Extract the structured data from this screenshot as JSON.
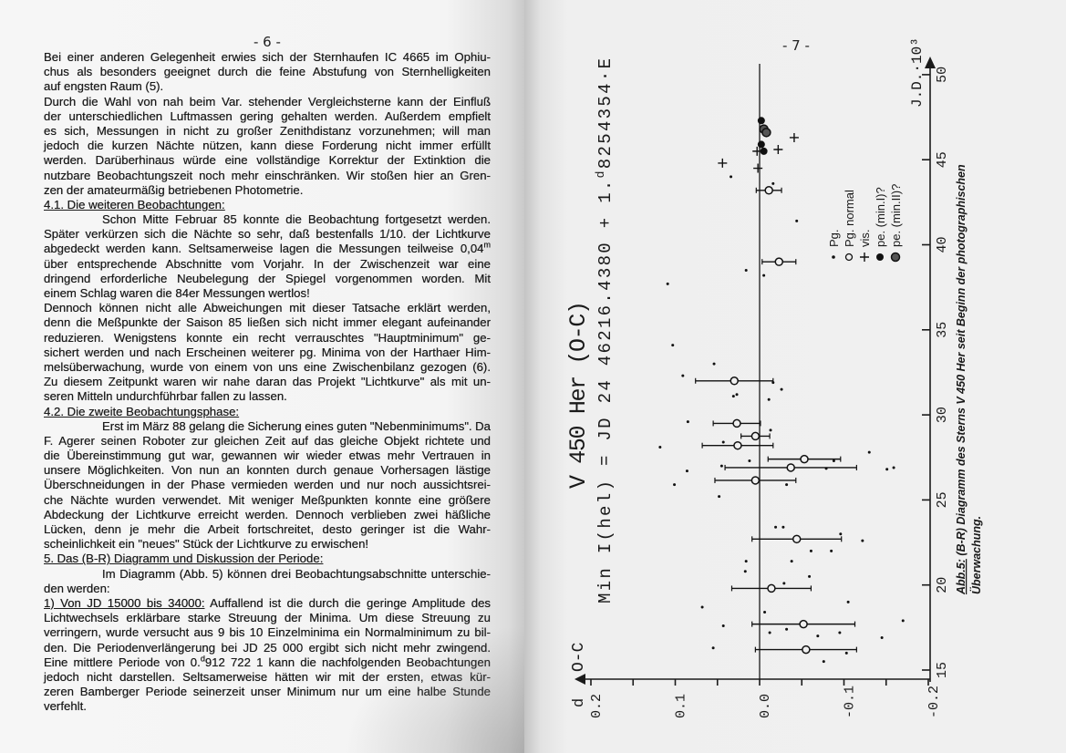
{
  "left": {
    "page_number": "- 6 -",
    "lines": [
      "Bei einer anderen Gelegenheit erwies sich der Sternhaufen IC 4665 im Ophiu-",
      "chus als besonders geeignet durch die feine Abstufung von Sternhelligkeiten",
      "auf engsten Raum (5).",
      "Durch die Wahl von nah beim Var. stehender Vergleichsterne kann der Einfluß",
      "der unterschiedlichen Luftmassen gering gehalten werden. Außerdem empfielt",
      "es sich, Messungen in nicht zu großer Zenithdistanz vorzunehmen; will man",
      "jedoch die kurzen Nächte nützen, kann diese Forderung nicht immer erfüllt",
      "werden. Darüberhinaus würde eine vollständige Korrektur der Extinktion die",
      "nutzbare Beobachtungszeit noch mehr einschränken. Wir stoßen hier an Gren-",
      "zen der amateurmäßig betriebenen Photometrie.",
      {
        "u": "4.1. Die weiteren Beobachtungen:"
      },
      "Schon Mitte Februar 85 konnte die Beobachtung fortgesetzt werden.",
      "Später verkürzen sich die Nächte so sehr, daß bestenfalls 1/10. der Lichtkurve",
      {
        "t": "abgedeckt werden kann. Seltsamerweise lagen die Messungen teilweise 0,04",
        "sup": "m",
        "t2": ""
      },
      "über entsprechende Abschnitte vom Vorjahr. In der Zwischenzeit war eine",
      "dringend erforderliche Neubelegung der Spiegel vorgenommen worden. Mit",
      "einem Schlag waren die 84er Messungen wertlos!",
      "Dennoch können nicht alle Abweichungen mit dieser Tatsache erklärt werden,",
      "denn die Meßpunkte der Saison 85 ließen sich nicht immer elegant aufeinander",
      "reduzieren. Wenigstens konnte ein recht verrauschtes \"Hauptminimum\" ge-",
      "sichert werden und nach Erscheinen weiterer pg. Minima von der Harthaer Him-",
      "melsüberwachung, wurde von einem von uns eine Zwischenbilanz gezogen (6).",
      "Zu diesem Zeitpunkt waren wir nahe daran das Projekt \"Lichtkurve\" als mit un-",
      "seren Mitteln undurchführbar fallen zu lassen.",
      {
        "u": "4.2. Die zweite Beobachtungsphase:"
      },
      "Erst im März 88 gelang die Sicherung eines guten \"Nebenminimums\". Da",
      "F. Agerer seinen Roboter zur gleichen Zeit auf das gleiche Objekt richtete und",
      "die Übereinstimmung gut war, gewannen wir wieder etwas mehr Vertrauen in",
      "unsere Möglichkeiten. Von nun an konnten durch genaue Vorhersagen lästige",
      "Überschneidungen in der Phase vermieden werden und nur noch aussichtsrei-",
      "che Nächte wurden verwendet. Mit weniger Meßpunkten konnte eine größere",
      "Abdeckung der Lichtkurve erreicht werden. Dennoch verblieben zwei häßliche",
      "Lücken, denn je mehr die Arbeit fortschreitet, desto geringer ist die Wahr-",
      "scheinlichkeit ein \"neues\" Stück der Lichtkurve zu erwischen!",
      {
        "u": "5. Das (B-R) Diagramm und Diskussion der Periode:"
      },
      "Im Diagramm (Abb. 5) können drei Beobachtungsabschnitte unterschie-",
      "den werden:",
      {
        "u": "1) Von JD 15000 bis 34000:",
        "t": " Auffallend ist die durch die geringe Amplitude des"
      },
      "Lichtwechsels erklärbare starke Streuung der Minima. Um diese Streuung zu",
      "verringern, wurde versucht aus 9 bis 10 Einzelminima ein Normalminimum zu bil-",
      "den. Die Periodenverlängerung bei JD 25 000 ergibt sich nicht mehr zwingend.",
      {
        "t": "Eine mittlere Periode von 0.",
        "sup": "d",
        "t2": "912 722 1 kann die nachfolgenden Beobachtungen"
      },
      "jedoch nicht darstellen. Seltsamerweise hätten wir mit der ersten, etwas kür-",
      "zeren Bamberger Periode seinerzeit unser Minimum nur um eine halbe Stunde",
      "verfehlt."
    ]
  },
  "right": {
    "page_number": "- 7 -",
    "caption_label": "Abb.5:",
    "caption_line1": " (B-R) Diagramm des Sterns V 450 Her seit Beginn der photographischen",
    "caption_line2": "Überwachung."
  },
  "chart_data": {
    "type": "scatter",
    "orientation": "rotated 90° (JD axis vertical, O-C axis horizontal)",
    "title": "V 450 Her (O-C)",
    "ephemeris": {
      "pre": "Min I(hel) = JD 24 46216.4380 + 1.",
      "sup": "d",
      "post": "8254354·E"
    },
    "xlabel": "J.D.·10³",
    "ylabel_unit": "d",
    "ylabel": "O-C",
    "xlim": [
      13.5,
      51
    ],
    "ylim": [
      0.2,
      -0.2
    ],
    "x_ticks": [
      "15",
      "20",
      "25",
      "30",
      "35",
      "40",
      "45",
      "50"
    ],
    "y_ticks": [
      "0.2",
      "0.1",
      "0.0",
      "-0.1",
      "-0.2"
    ],
    "legend_placement": "upper-right",
    "legend": [
      {
        "symbol": "dot",
        "label": "Pg."
      },
      {
        "symbol": "open-circle",
        "label": "Pg. normal"
      },
      {
        "symbol": "plus",
        "label": "vis."
      },
      {
        "symbol": "filled-circle",
        "label": "pe. (min.I)?"
      },
      {
        "symbol": "dotted-circle",
        "label": "pe. (min.II)?"
      }
    ],
    "series": {
      "pg": [
        [
          43.6,
          -0.016
        ],
        [
          44.0,
          0.034
        ],
        [
          41.4,
          -0.044
        ],
        [
          38.5,
          0.016
        ],
        [
          38.2,
          -0.005
        ],
        [
          37.7,
          0.109
        ],
        [
          34.1,
          0.103
        ],
        [
          33.0,
          0.054
        ],
        [
          32.3,
          0.091
        ],
        [
          31.9,
          -0.016
        ],
        [
          31.5,
          -0.026
        ],
        [
          31.2,
          0.027
        ],
        [
          31.1,
          0.031
        ],
        [
          30.9,
          -0.011
        ],
        [
          29.6,
          0.085
        ],
        [
          29.1,
          -0.013
        ],
        [
          28.1,
          0.118
        ],
        [
          28.4,
          0.043
        ],
        [
          27.8,
          -0.13
        ],
        [
          27.3,
          -0.088
        ],
        [
          27.3,
          0.012
        ],
        [
          26.8,
          -0.151
        ],
        [
          26.9,
          -0.159
        ],
        [
          27.0,
          0.045
        ],
        [
          26.85,
          -0.079
        ],
        [
          26.7,
          0.086
        ],
        [
          25.9,
          0.101
        ],
        [
          25.9,
          -0.032
        ],
        [
          25.2,
          0.048
        ],
        [
          23.4,
          -0.019
        ],
        [
          23.4,
          -0.028
        ],
        [
          23.0,
          -0.096
        ],
        [
          22.6,
          -0.122
        ],
        [
          22.0,
          -0.061
        ],
        [
          22.0,
          -0.085
        ],
        [
          21.4,
          0.016
        ],
        [
          21.4,
          -0.038
        ],
        [
          20.8,
          0.017
        ],
        [
          20.5,
          -0.059
        ],
        [
          20.1,
          -0.029
        ],
        [
          18.7,
          0.068
        ],
        [
          18.4,
          -0.006
        ],
        [
          19.0,
          -0.105
        ],
        [
          17.9,
          -0.17
        ],
        [
          17.6,
          0.043
        ],
        [
          17.4,
          -0.032
        ],
        [
          17.0,
          -0.069
        ],
        [
          17.2,
          -0.095
        ],
        [
          16.9,
          -0.145
        ],
        [
          16.3,
          0.055
        ],
        [
          16.0,
          -0.103
        ],
        [
          15.5,
          -0.076
        ],
        [
          17.2,
          -0.012
        ]
      ],
      "pg_normal": [
        [
          43.2,
          -0.011,
          0.015
        ],
        [
          39.0,
          -0.023,
          0.02
        ],
        [
          32.0,
          0.03,
          0.046
        ],
        [
          29.5,
          0.027,
          0.028
        ],
        [
          28.75,
          0.005,
          0.017
        ],
        [
          28.2,
          0.026,
          0.042
        ],
        [
          27.4,
          -0.053,
          0.043
        ],
        [
          26.9,
          -0.037,
          0.078
        ],
        [
          26.15,
          0.005,
          0.048
        ],
        [
          22.7,
          -0.044,
          0.053
        ],
        [
          19.8,
          -0.014,
          0.047
        ],
        [
          17.7,
          -0.052,
          0.061
        ],
        [
          16.2,
          -0.055,
          0.06
        ]
      ],
      "vis": [
        [
          46.3,
          -0.041
        ],
        [
          45.5,
          0.003
        ],
        [
          45.6,
          -0.022
        ],
        [
          44.8,
          0.044
        ],
        [
          44.5,
          0.002
        ]
      ],
      "pe_min1": [
        [
          47.3,
          -0.002
        ],
        [
          45.9,
          -0.002
        ],
        [
          45.5,
          -0.005
        ]
      ],
      "pe_min2": [
        [
          46.8,
          -0.005
        ],
        [
          46.6,
          -0.008
        ]
      ]
    }
  }
}
